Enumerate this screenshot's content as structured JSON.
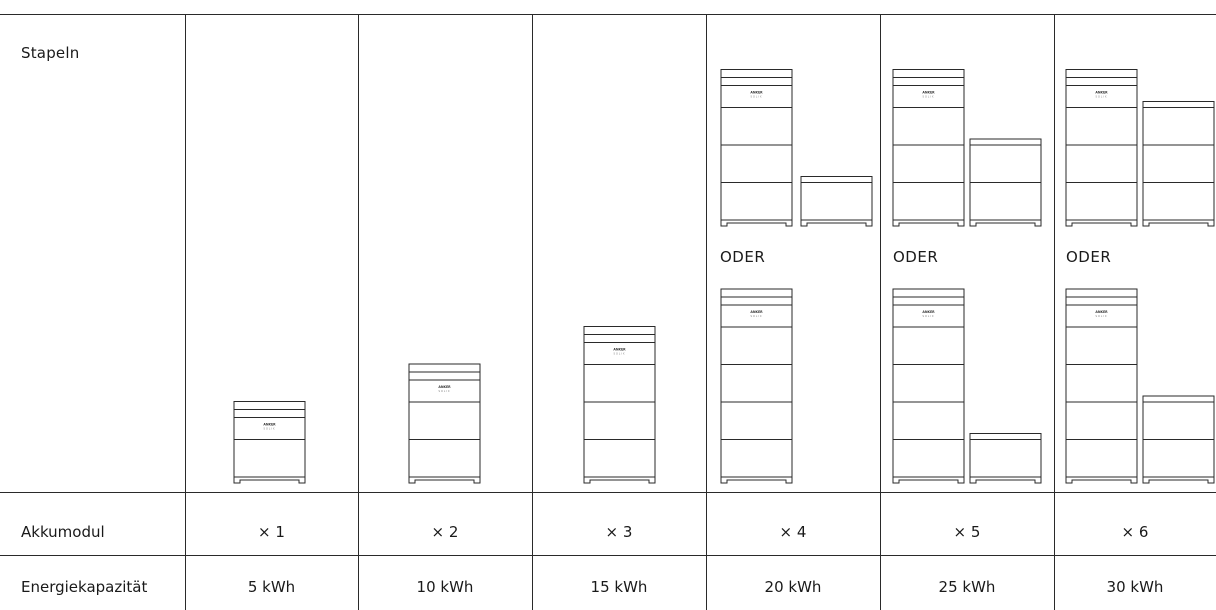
{
  "header_label": "Stapeln",
  "or_label": "ODER",
  "module_label": "Akkumodul",
  "capacity_label": "Energiekapazität",
  "brand_mark": "ANKER SOLIX",
  "columns": [
    {
      "count": "× 1",
      "capacity": "5 kWh"
    },
    {
      "count": "× 2",
      "capacity": "10 kWh"
    },
    {
      "count": "× 3",
      "capacity": "15 kWh"
    },
    {
      "count": "× 4",
      "capacity": "20 kWh"
    },
    {
      "count": "× 5",
      "capacity": "25 kWh"
    },
    {
      "count": "× 6",
      "capacity": "30 kWh"
    }
  ]
}
